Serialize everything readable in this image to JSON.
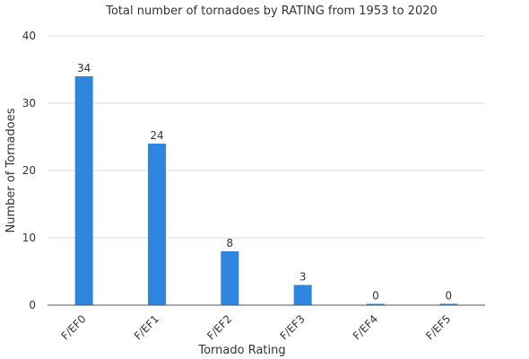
{
  "chart_data": {
    "type": "bar",
    "title": "Total number of tornadoes by RATING from 1953 to 2020",
    "xlabel": "Tornado Rating",
    "ylabel": "Number of Tornadoes",
    "categories": [
      "F/EF0",
      "F/EF1",
      "F/EF2",
      "F/EF3",
      "F/EF4",
      "F/EF5"
    ],
    "values": [
      34,
      24,
      8,
      3,
      0,
      0
    ],
    "ylim": [
      0,
      40
    ],
    "yticks": [
      0,
      10,
      20,
      30,
      40
    ],
    "grid": true,
    "legend": "none",
    "bar_color": "#2e86de",
    "data_labels": true
  }
}
